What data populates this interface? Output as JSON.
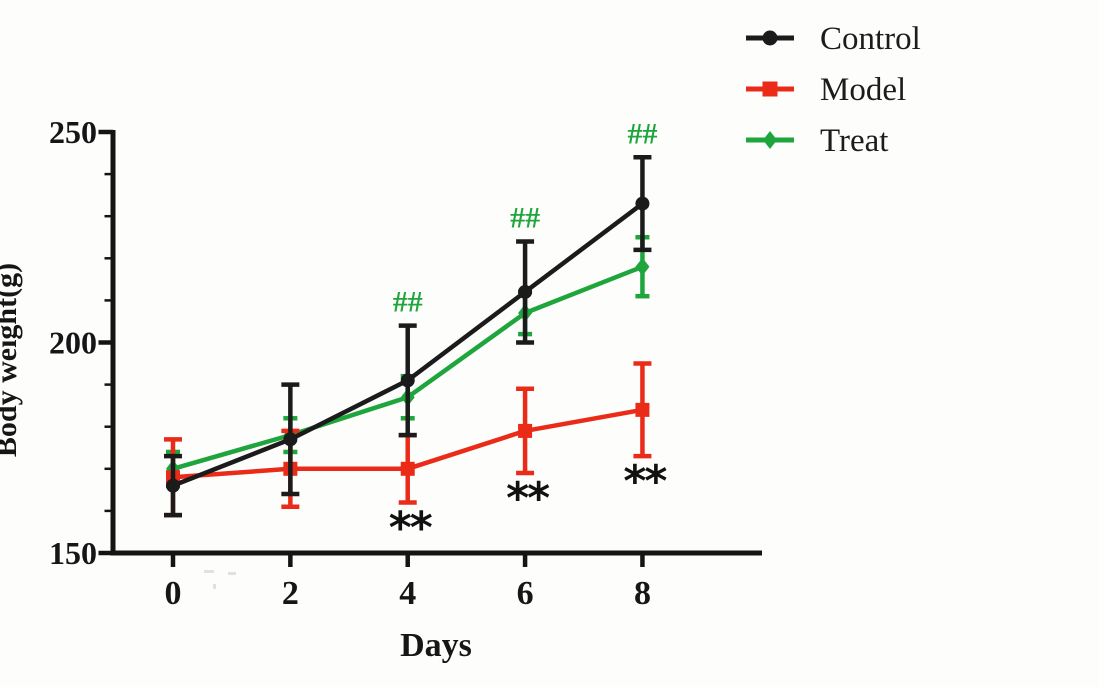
{
  "figure": {
    "background": "#fdfdfc",
    "axis_color": "#141414",
    "text_color": "#161616"
  },
  "chart_data": {
    "type": "line",
    "title": "",
    "xlabel": "Days",
    "ylabel": "Body weight(g)",
    "x": [
      0,
      2,
      4,
      6,
      8
    ],
    "xticks": [
      "0",
      "2",
      "4",
      "6",
      "8"
    ],
    "yticks": [
      "150",
      "200",
      "250"
    ],
    "ylim": [
      150,
      250
    ],
    "y_minor_tick_step": 10,
    "grid": false,
    "legend_position": "top-right",
    "series": [
      {
        "name": "Control",
        "color": "#1b1b1b",
        "marker": "circle",
        "values": [
          166,
          177,
          191,
          212,
          233
        ],
        "errors": [
          7,
          13,
          13,
          12,
          11
        ]
      },
      {
        "name": "Model",
        "color": "#ea2b18",
        "marker": "square",
        "values": [
          168,
          170,
          170,
          179,
          184
        ],
        "errors": [
          9,
          9,
          8,
          10,
          11
        ]
      },
      {
        "name": "Treat",
        "color": "#1ea53c",
        "marker": "diamond",
        "values": [
          170,
          178,
          187,
          207,
          218
        ],
        "errors": [
          4,
          4,
          5,
          5,
          7
        ]
      }
    ],
    "annotations": [
      {
        "day": 4,
        "top_label": "##",
        "bottom_label": "**"
      },
      {
        "day": 6,
        "top_label": "##",
        "bottom_label": "**"
      },
      {
        "day": 8,
        "top_label": "##",
        "bottom_label": "**"
      }
    ],
    "annotation_colors": {
      "top": "#1ea53c",
      "bottom": "#111111"
    }
  }
}
